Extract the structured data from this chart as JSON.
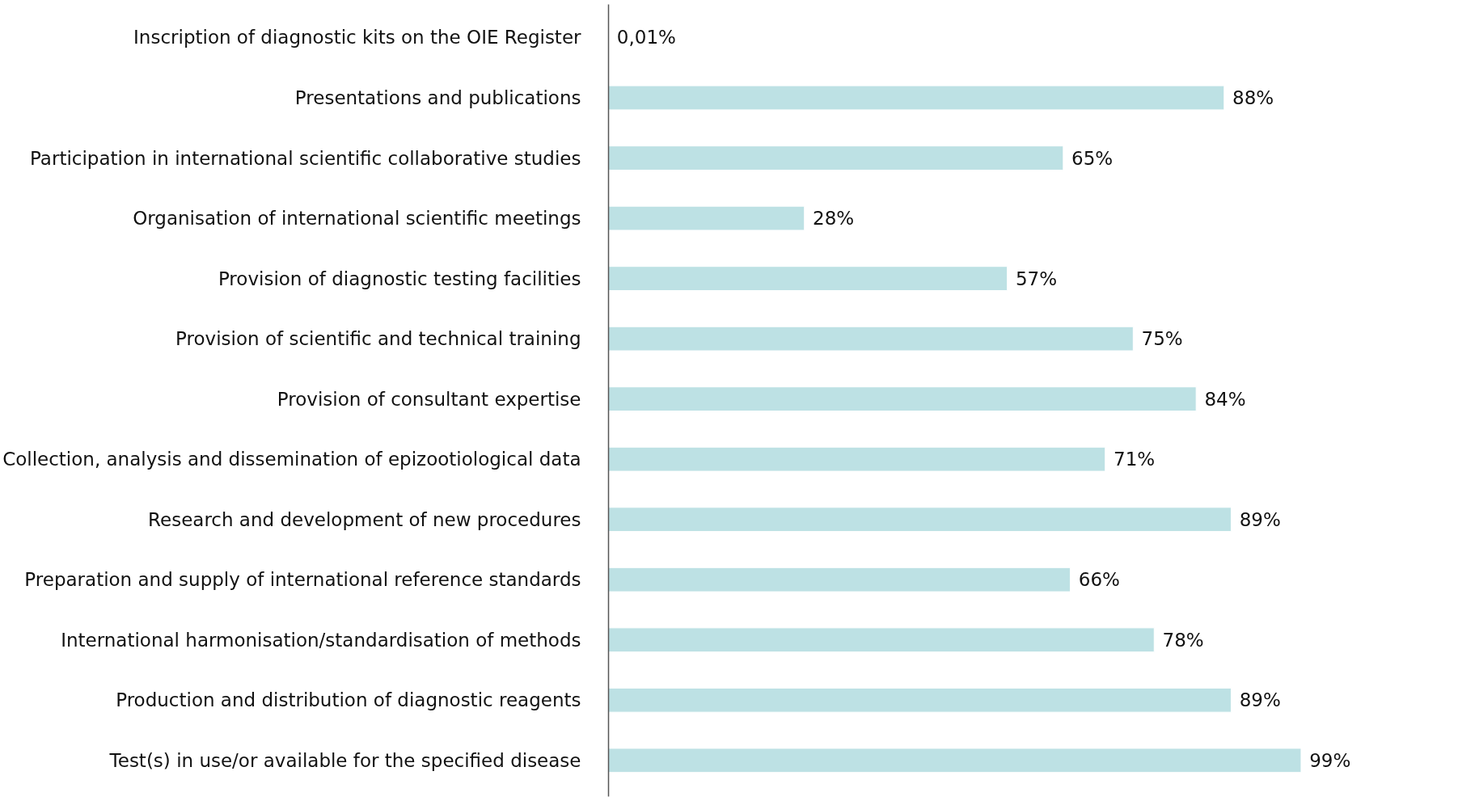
{
  "chart_data": {
    "type": "bar",
    "orientation": "horizontal",
    "categories": [
      "Inscription of diagnostic kits on the OIE Register",
      "Presentations and publications",
      "Participation in international scientific collaborative studies",
      "Organisation of international scientific meetings",
      "Provision of diagnostic testing facilities",
      "Provision of scientific and technical training",
      "Provision of consultant expertise",
      "Collection, analysis and dissemination of epizootiological data",
      "Research and development of new procedures",
      "Preparation and supply of international reference standards",
      "International harmonisation/standardisation of methods",
      "Production and distribution of diagnostic reagents",
      "Test(s) in use/or available for the specified disease"
    ],
    "values": [
      0.01,
      88,
      65,
      28,
      57,
      75,
      84,
      71,
      89,
      66,
      78,
      89,
      99
    ],
    "value_labels": [
      "0,01%",
      "88%",
      "65%",
      "28%",
      "57%",
      "75%",
      "84%",
      "71%",
      "89%",
      "66%",
      "78%",
      "89%",
      "99%"
    ],
    "color": "#bde1e4",
    "grid": false
  }
}
